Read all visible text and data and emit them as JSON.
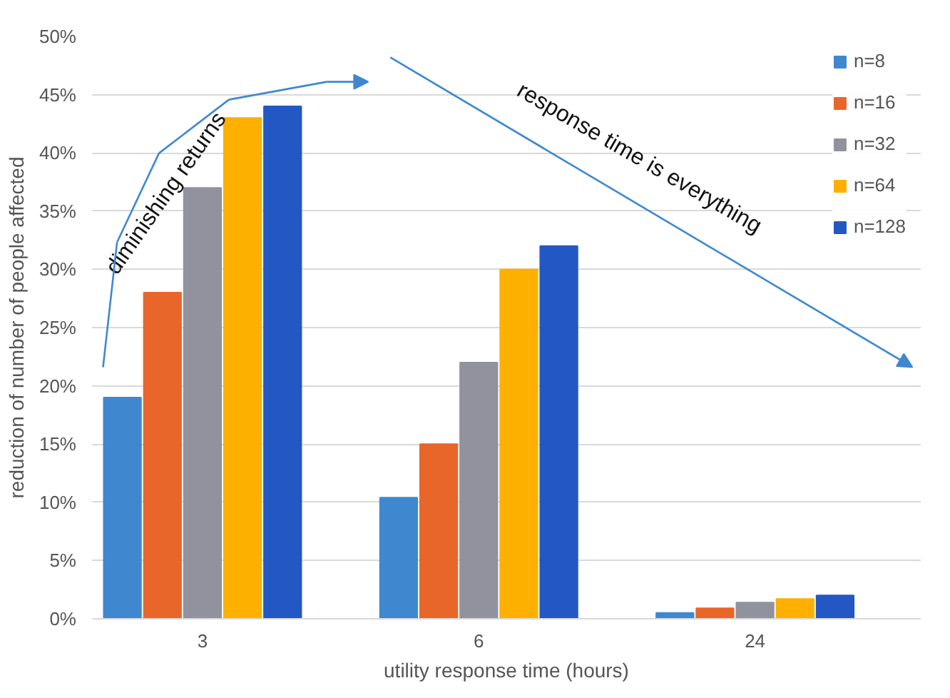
{
  "chart_data": {
    "type": "bar",
    "xlabel": "utility response time (hours)",
    "ylabel": "reduction of number of people affected",
    "categories": [
      "3",
      "6",
      "24"
    ],
    "series": [
      {
        "name": "n=8",
        "color": "#3f88d0",
        "values": [
          19,
          10.4,
          0.5
        ]
      },
      {
        "name": "n=16",
        "color": "#e8662a",
        "values": [
          28,
          15,
          0.9
        ]
      },
      {
        "name": "n=32",
        "color": "#92929e",
        "values": [
          37,
          22,
          1.4
        ]
      },
      {
        "name": "n=64",
        "color": "#fdb000",
        "values": [
          43,
          30,
          1.7
        ]
      },
      {
        "name": "n=128",
        "color": "#2358c4",
        "values": [
          44,
          32,
          2.0
        ]
      }
    ],
    "ylim": [
      0,
      50
    ],
    "yticks": [
      {
        "value": 0,
        "label": "0%"
      },
      {
        "value": 5,
        "label": "5%"
      },
      {
        "value": 10,
        "label": "10%"
      },
      {
        "value": 15,
        "label": "15%"
      },
      {
        "value": 20,
        "label": "20%"
      },
      {
        "value": 25,
        "label": "25%"
      },
      {
        "value": 30,
        "label": "30%"
      },
      {
        "value": 35,
        "label": "35%"
      },
      {
        "value": 40,
        "label": "40%"
      },
      {
        "value": 45,
        "label": "45%"
      },
      {
        "value": 50,
        "label": "50%"
      }
    ],
    "annotations": [
      "diminishing returns",
      "response time is everything"
    ],
    "grid": "y",
    "legend": "top right"
  }
}
